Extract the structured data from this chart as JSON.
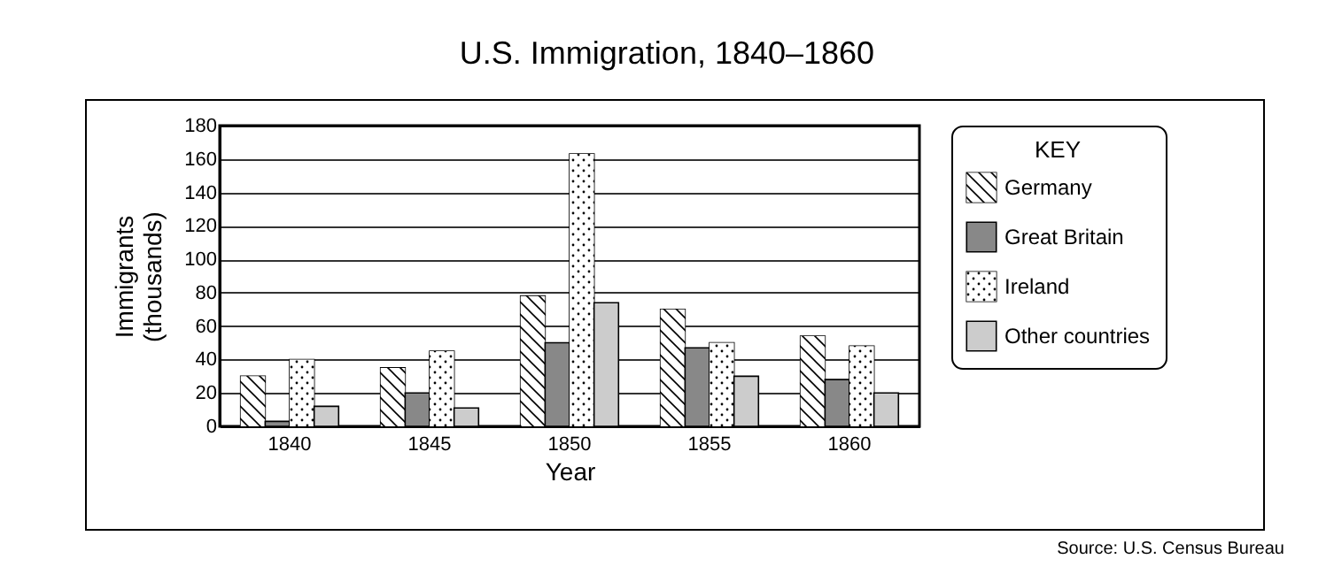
{
  "chart_data": {
    "type": "bar",
    "title": "U.S. Immigration, 1840–1860",
    "xlabel": "Year",
    "ylabel": "Immigrants (thousands)",
    "legend_title": "KEY",
    "categories": [
      "1840",
      "1845",
      "1850",
      "1855",
      "1860"
    ],
    "series": [
      {
        "name": "Germany",
        "color": "#ffffff",
        "values": [
          30,
          35,
          78,
          70,
          54
        ]
      },
      {
        "name": "Great Britain",
        "color": "#888888",
        "values": [
          3,
          20,
          50,
          47,
          28
        ]
      },
      {
        "name": "Ireland",
        "color": "#ffffff",
        "values": [
          40,
          45,
          163,
          50,
          48
        ]
      },
      {
        "name": "Other countries",
        "color": "#cccccc",
        "values": [
          12,
          11,
          74,
          30,
          20
        ]
      }
    ],
    "ylim": [
      0,
      180
    ],
    "yticks": [
      0,
      20,
      40,
      60,
      80,
      100,
      120,
      140,
      160,
      180
    ],
    "grid": "y",
    "legend": "right",
    "annotations": [
      "Source: U.S. Census Bureau"
    ]
  }
}
